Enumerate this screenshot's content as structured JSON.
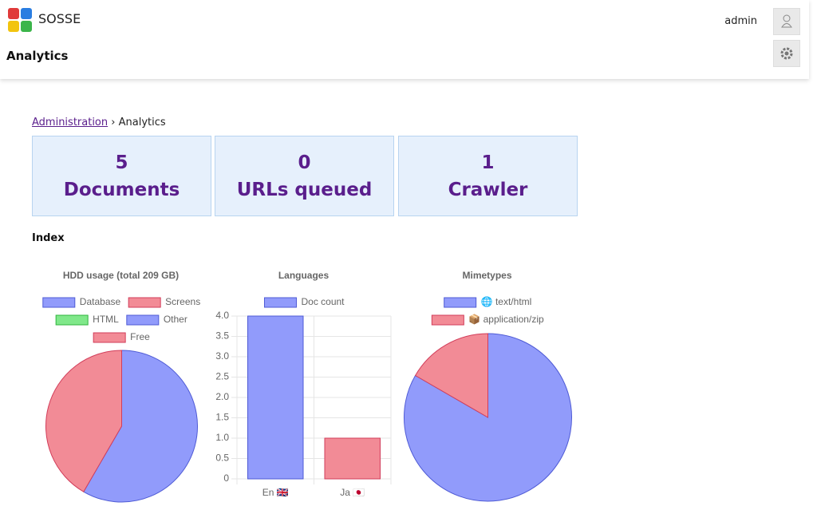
{
  "header": {
    "app_name": "SOSSE",
    "page_title": "Analytics",
    "user": "admin"
  },
  "breadcrumb": {
    "parent": "Administration",
    "separator": "›",
    "current": "Analytics"
  },
  "stats": [
    {
      "value": 5,
      "label": "Documents"
    },
    {
      "value": 0,
      "label": "URLs queued"
    },
    {
      "value": 1,
      "label": "Crawler"
    }
  ],
  "section_title": "Index",
  "chart_data": [
    {
      "type": "pie",
      "title": "HDD usage (total 209 GB)",
      "categories": [
        "Database",
        "Screens",
        "HTML",
        "Other",
        "Free"
      ],
      "values": [
        0,
        0,
        0,
        122,
        87
      ],
      "colors": [
        "#919bfb",
        "#f28b96",
        "#80e88a",
        "#919bfb",
        "#f28b96"
      ]
    },
    {
      "type": "bar",
      "title": "Languages",
      "categories": [
        "En 🇬🇧",
        "Ja 🇯🇵"
      ],
      "series": [
        {
          "name": "Doc count",
          "color": "#919bfb",
          "values": [
            4,
            1
          ]
        }
      ],
      "colors": [
        "#919bfb",
        "#f28b96"
      ],
      "ylim": [
        0,
        4
      ],
      "yticks": [
        0,
        0.5,
        {
          "value": 1,
          "label": "1.0"
        },
        1.5,
        {
          "value": 2,
          "label": "2.0"
        },
        2.5,
        {
          "value": 3,
          "label": "3.0"
        },
        3.5,
        {
          "value": 4,
          "label": "4.0"
        }
      ],
      "grid": true
    },
    {
      "type": "pie",
      "title": "Mimetypes",
      "categories": [
        "🌐 text/html",
        "📦 application/zip"
      ],
      "values": [
        5,
        1
      ],
      "colors": [
        "#919bfb",
        "#f28b96"
      ]
    }
  ]
}
